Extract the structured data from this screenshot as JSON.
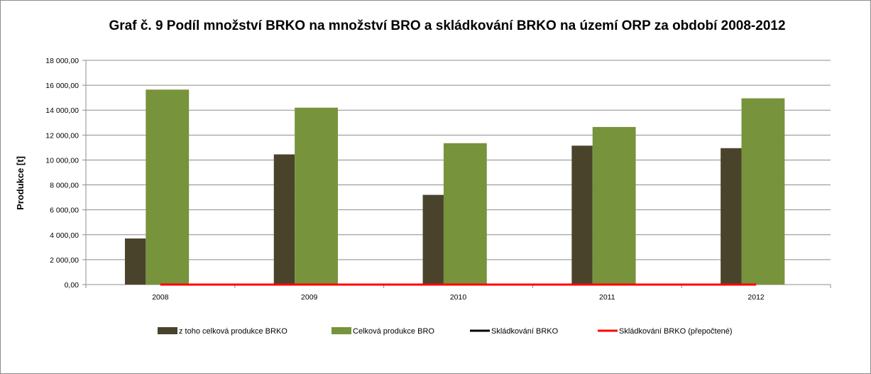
{
  "chart_data": {
    "type": "bar",
    "title": "Graf č. 9 Podíl množství BRKO na množství BRO a skládkování BRKO na území ORP za období 2008-2012",
    "xlabel": "",
    "ylabel": "Produkce [t]",
    "ylim": [
      0,
      18000
    ],
    "y_ticks": [
      "0,00",
      "2 000,00",
      "4 000,00",
      "6 000,00",
      "8 000,00",
      "10 000,00",
      "12 000,00",
      "14 000,00",
      "16 000,00",
      "18 000,00"
    ],
    "categories": [
      "2008",
      "2009",
      "2010",
      "2011",
      "2012"
    ],
    "grid": true,
    "legend_position": "bottom",
    "series": [
      {
        "name": "z toho celková produkce BRKO",
        "kind": "bar",
        "color": "#4a432c",
        "values": [
          3700,
          10450,
          7200,
          11150,
          10950
        ]
      },
      {
        "name": "Celková produkce BRO",
        "kind": "bar",
        "color": "#77933c",
        "values": [
          15650,
          14200,
          11350,
          12650,
          14950
        ]
      },
      {
        "name": "Skládkování BRKO",
        "kind": "line",
        "color": "#000000",
        "values": [
          0,
          0,
          0,
          0,
          0
        ]
      },
      {
        "name": "Skládkování BRKO (přepočtené)",
        "kind": "line",
        "color": "#ff0000",
        "values": [
          0,
          0,
          0,
          0,
          0
        ]
      }
    ]
  }
}
